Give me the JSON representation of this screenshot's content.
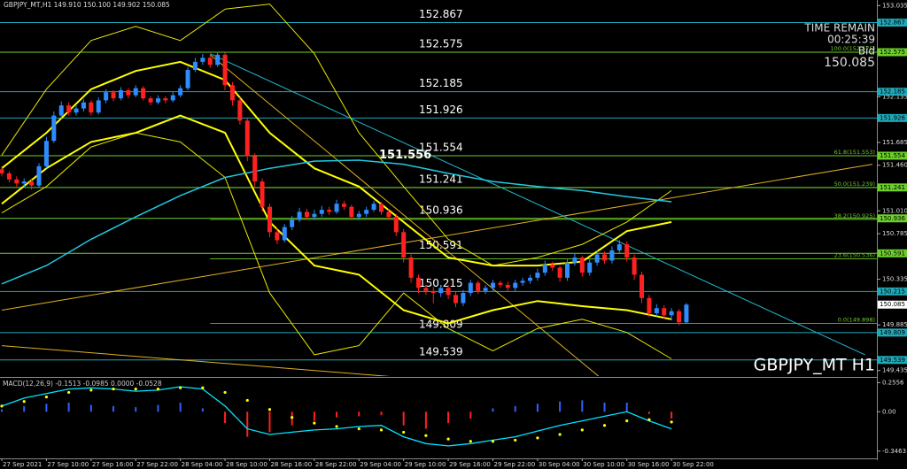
{
  "chart_data": {
    "type": "candlestick",
    "header": "GBPJPY_MT,H1  149.910 150.100 149.902 150.085",
    "watermark": "GBPJPY_MT H1",
    "time_remain_label": "TIME REMAIN",
    "time_remain": "00:25:39",
    "bid_label": "Bid",
    "up_color": "#2f8cff",
    "down_color": "#ff2020",
    "xlim": [
      -0.24,
      117.6
    ],
    "ylim": [
      149.38,
      153.09
    ],
    "xticks": [
      {
        "value": 0,
        "label": "27 Sep 2021"
      },
      {
        "value": 6,
        "label": "27 Sep 10:00"
      },
      {
        "value": 12,
        "label": "27 Sep 16:00"
      },
      {
        "value": 18,
        "label": "27 Sep 22:00"
      },
      {
        "value": 24,
        "label": "28 Sep 04:00"
      },
      {
        "value": 30,
        "label": "28 Sep 10:00"
      },
      {
        "value": 36,
        "label": "28 Sep 16:00"
      },
      {
        "value": 42,
        "label": "28 Sep 22:00"
      },
      {
        "value": 48,
        "label": "29 Sep 04:00"
      },
      {
        "value": 54,
        "label": "29 Sep 10:00"
      },
      {
        "value": 60,
        "label": "29 Sep 16:00"
      },
      {
        "value": 66,
        "label": "29 Sep 22:00"
      },
      {
        "value": 72,
        "label": "30 Sep 04:00"
      },
      {
        "value": 78,
        "label": "30 Sep 10:00"
      },
      {
        "value": 84,
        "label": "30 Sep 16:00"
      },
      {
        "value": 90,
        "label": "30 Sep 22:00"
      }
    ],
    "yticks": [
      153.035,
      152.585,
      152.135,
      151.685,
      {
        "value": 151.46,
        "label": "151.460"
      },
      {
        "value": 151.01,
        "label": "151.010"
      },
      150.785,
      150.335,
      149.885,
      149.435
    ],
    "open": [
      151.42,
      151.38,
      151.32,
      151.28,
      151.3,
      151.26,
      151.45,
      151.7,
      151.95,
      152.05,
      151.98,
      152.02,
      152.08,
      151.98,
      152.1,
      152.18,
      152.12,
      152.2,
      152.15,
      152.22,
      152.12,
      152.08,
      152.12,
      152.1,
      152.15,
      152.22,
      152.4,
      152.48,
      152.52,
      152.45,
      152.55,
      152.25,
      152.1,
      151.9,
      151.55,
      151.3,
      151.05,
      150.8,
      150.72,
      150.85,
      150.92,
      151.0,
      150.95,
      150.98,
      151.02,
      151.0,
      151.08,
      151.05,
      150.95,
      150.98,
      151.02,
      151.08,
      151.0,
      150.95,
      150.8,
      150.55,
      150.35,
      150.25,
      150.22,
      150.2,
      150.25,
      150.18,
      150.1,
      150.2,
      150.3,
      150.22,
      150.25,
      150.3,
      150.28,
      150.25,
      150.3,
      150.32,
      150.35,
      150.4,
      150.48,
      150.45,
      150.35,
      150.5,
      150.55,
      150.4,
      150.5,
      150.58,
      150.52,
      150.62,
      150.68,
      150.55,
      150.38,
      150.15,
      150.0,
      150.05,
      149.98,
      150.02,
      149.91
    ],
    "high": [
      151.45,
      151.4,
      151.35,
      151.33,
      151.33,
      151.48,
      151.74,
      151.99,
      152.09,
      152.08,
      152.05,
      152.11,
      152.1,
      152.13,
      152.21,
      152.2,
      152.23,
      152.22,
      152.25,
      152.24,
      152.14,
      152.15,
      152.14,
      152.18,
      152.25,
      152.43,
      152.52,
      152.56,
      152.55,
      152.58,
      152.57,
      152.28,
      152.13,
      151.93,
      151.58,
      151.33,
      151.08,
      150.84,
      150.88,
      150.96,
      151.04,
      151.03,
      151.02,
      151.06,
      151.05,
      151.12,
      151.11,
      151.07,
      151.01,
      151.05,
      151.11,
      151.1,
      151.03,
      150.98,
      150.83,
      150.58,
      150.38,
      150.28,
      150.26,
      150.28,
      150.28,
      150.21,
      150.23,
      150.33,
      150.32,
      150.28,
      150.33,
      150.32,
      150.31,
      150.33,
      150.35,
      150.38,
      150.44,
      150.52,
      150.51,
      150.47,
      150.53,
      150.59,
      150.57,
      150.53,
      150.62,
      150.61,
      150.66,
      150.72,
      150.71,
      150.58,
      150.41,
      150.18,
      150.09,
      150.08,
      150.05,
      150.04,
      150.1
    ],
    "low": [
      151.35,
      151.29,
      151.25,
      151.24,
      151.22,
      151.24,
      151.43,
      151.68,
      151.92,
      151.95,
      151.95,
      151.99,
      151.95,
      151.96,
      152.07,
      152.09,
      152.1,
      152.12,
      152.13,
      152.1,
      152.05,
      152.06,
      152.07,
      152.08,
      152.13,
      152.2,
      152.38,
      152.45,
      152.42,
      152.43,
      152.2,
      152.05,
      151.86,
      151.5,
      151.25,
      151.0,
      150.75,
      150.68,
      150.7,
      150.82,
      150.9,
      150.92,
      150.92,
      150.95,
      150.97,
      150.98,
      151.02,
      150.92,
      150.92,
      150.95,
      151.0,
      150.97,
      150.92,
      150.76,
      150.5,
      150.3,
      150.2,
      150.18,
      150.1,
      150.16,
      150.14,
      150.06,
      150.07,
      150.17,
      150.19,
      150.19,
      150.22,
      150.25,
      150.22,
      150.22,
      150.27,
      150.29,
      150.32,
      150.37,
      150.42,
      150.31,
      150.32,
      150.47,
      150.36,
      150.37,
      150.47,
      150.49,
      150.49,
      150.59,
      150.51,
      150.33,
      150.1,
      149.96,
      149.97,
      149.94,
      149.93,
      149.88,
      149.902
    ],
    "close": [
      151.38,
      151.32,
      151.28,
      151.3,
      151.26,
      151.45,
      151.7,
      151.95,
      152.05,
      151.98,
      152.02,
      152.08,
      151.98,
      152.1,
      152.18,
      152.12,
      152.2,
      152.15,
      152.22,
      152.12,
      152.08,
      152.12,
      152.1,
      152.15,
      152.22,
      152.4,
      152.48,
      152.52,
      152.45,
      152.55,
      152.25,
      152.1,
      151.9,
      151.55,
      151.3,
      151.05,
      150.8,
      150.72,
      150.85,
      150.92,
      151.0,
      150.95,
      150.98,
      151.02,
      151.0,
      151.08,
      151.05,
      150.95,
      150.98,
      151.02,
      151.08,
      151.0,
      150.95,
      150.8,
      150.55,
      150.35,
      150.25,
      150.22,
      150.2,
      150.25,
      150.18,
      150.1,
      150.2,
      150.3,
      150.22,
      150.25,
      150.3,
      150.28,
      150.25,
      150.3,
      150.32,
      150.35,
      150.4,
      150.48,
      150.45,
      150.35,
      150.5,
      150.55,
      150.4,
      150.5,
      150.58,
      150.52,
      150.62,
      150.68,
      150.55,
      150.38,
      150.15,
      150.0,
      150.05,
      149.98,
      150.02,
      149.91,
      150.085
    ],
    "indicator_x": [
      0,
      6,
      12,
      18,
      24,
      30,
      36,
      42,
      48,
      54,
      60,
      66,
      72,
      78,
      84,
      90
    ],
    "indicators": [
      {
        "color": "#e8e800",
        "width": 1,
        "values": [
          151.56,
          152.21,
          152.69,
          152.83,
          152.69,
          153.0,
          153.05,
          152.56,
          151.78,
          151.25,
          150.73,
          150.47,
          150.55,
          150.68,
          150.9,
          151.21
        ]
      },
      {
        "color": "#e8e800",
        "width": 1,
        "values": [
          150.99,
          151.25,
          151.64,
          151.78,
          151.69,
          151.34,
          150.2,
          149.59,
          149.68,
          150.2,
          149.85,
          149.63,
          149.85,
          149.94,
          149.81,
          149.55
        ]
      },
      {
        "color": "#ffff00",
        "width": 2,
        "values": [
          151.43,
          151.78,
          152.21,
          152.39,
          152.48,
          152.3,
          151.78,
          151.43,
          151.25,
          150.9,
          150.55,
          150.47,
          150.47,
          150.51,
          150.81,
          150.9
        ]
      },
      {
        "color": "#ffff00",
        "width": 2,
        "values": [
          151.08,
          151.43,
          151.69,
          151.78,
          151.95,
          151.78,
          150.9,
          150.47,
          150.38,
          150.03,
          149.9,
          150.03,
          150.12,
          150.07,
          150.03,
          149.94
        ]
      },
      {
        "color": "#20c8e0",
        "width": 1.5,
        "values": [
          150.29,
          150.47,
          150.73,
          150.95,
          151.16,
          151.34,
          151.43,
          151.5,
          151.51,
          151.47,
          151.38,
          151.3,
          151.25,
          151.21,
          151.15,
          151.1
        ]
      }
    ],
    "trendlines": [
      {
        "color": "#e0b020",
        "x": [
          0,
          117
        ],
        "values": [
          150.03,
          151.47
        ]
      },
      {
        "color": "#e0b020",
        "x": [
          0,
          60
        ],
        "values": [
          149.68,
          149.33
        ]
      },
      {
        "color": "#e0b020",
        "x": [
          28,
          81
        ],
        "values": [
          152.55,
          149.33
        ]
      },
      {
        "color": "#20b8d0",
        "x": [
          28,
          116
        ],
        "values": [
          152.56,
          149.59
        ]
      }
    ],
    "levels": [
      {
        "value": 152.867,
        "color": "#1fa8b8"
      },
      {
        "value": 152.575,
        "color": "#6ccf2a"
      },
      {
        "value": 152.185,
        "color": "#1fa8b8"
      },
      {
        "value": 151.926,
        "color": "#1fa8b8"
      },
      {
        "value": 151.554,
        "color": "#6ccf2a"
      },
      {
        "value": 151.241,
        "color": "#6ccf2a"
      },
      {
        "value": 150.936,
        "color": "#6ccf2a"
      },
      {
        "value": 150.591,
        "color": "#6ccf2a"
      },
      {
        "value": 150.215,
        "color": "#1fa8b8"
      },
      {
        "value": 149.809,
        "color": "#1fa8b8"
      },
      {
        "value": 149.539,
        "color": "#1fa8b8"
      }
    ],
    "fib_color": "#6ccf2a",
    "fib_levels": [
      {
        "value": 152.575,
        "label": "100.0(152.575)"
      },
      {
        "value": 151.553,
        "label": "61.8(151.553)"
      },
      {
        "value": 151.239,
        "label": "50.0(151.239)"
      },
      {
        "value": 150.925,
        "label": "38.2(150.925)"
      },
      {
        "value": 150.536,
        "label": "23.6(150.536)"
      },
      {
        "value": 149.898,
        "label": "0.0(149.898)"
      }
    ],
    "annotation": 151.556,
    "macd": {
      "label": "MACD(12,26,9) -0.1513 -0.0985 0.0000 -0.0528",
      "ylim": [
        -0.41,
        0.29
      ],
      "yticks": [
        0.2556,
        {
          "value": 0,
          "label": "0.00"
        },
        -0.3463
      ],
      "line_color": "#00e5ff",
      "signal_color": "#ffff00",
      "pos_color": "#3060ff",
      "neg_color": "#ff2020",
      "x": [
        0,
        3,
        6,
        9,
        12,
        15,
        18,
        21,
        24,
        27,
        30,
        33,
        36,
        39,
        42,
        45,
        48,
        51,
        54,
        57,
        60,
        63,
        66,
        69,
        72,
        75,
        78,
        81,
        84,
        87,
        90
      ],
      "macd": [
        0.05,
        0.12,
        0.16,
        0.2,
        0.21,
        0.2,
        0.18,
        0.19,
        0.22,
        0.2,
        0.05,
        -0.15,
        -0.2,
        -0.18,
        -0.16,
        -0.15,
        -0.13,
        -0.12,
        -0.22,
        -0.28,
        -0.3,
        -0.28,
        -0.25,
        -0.22,
        -0.17,
        -0.12,
        -0.08,
        -0.04,
        0.0,
        -0.08,
        -0.15
      ],
      "signal": [
        0.05,
        0.09,
        0.13,
        0.17,
        0.19,
        0.2,
        0.2,
        0.2,
        0.21,
        0.21,
        0.17,
        0.1,
        0.02,
        -0.05,
        -0.1,
        -0.13,
        -0.15,
        -0.16,
        -0.18,
        -0.21,
        -0.24,
        -0.26,
        -0.26,
        -0.25,
        -0.23,
        -0.2,
        -0.16,
        -0.12,
        -0.08,
        -0.07,
        -0.09
      ],
      "histogram": [
        0.02,
        0.05,
        0.07,
        0.08,
        0.06,
        0.05,
        0.04,
        0.06,
        0.08,
        0.03,
        -0.1,
        -0.22,
        -0.18,
        -0.12,
        -0.08,
        -0.05,
        -0.04,
        -0.03,
        -0.12,
        -0.15,
        -0.1,
        -0.06,
        0.03,
        0.05,
        0.07,
        0.09,
        0.1,
        0.08,
        0.08,
        -0.02,
        -0.06
      ]
    }
  }
}
